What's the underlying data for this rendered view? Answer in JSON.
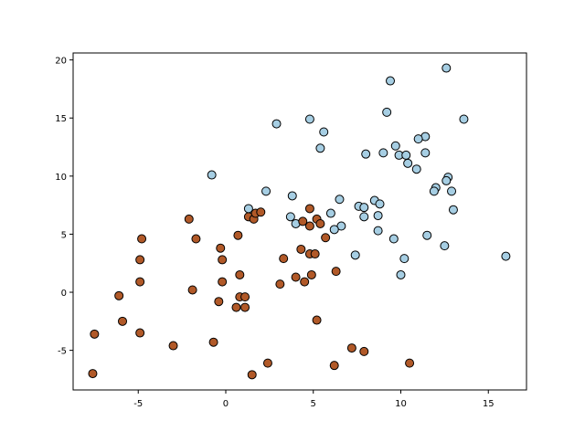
{
  "chart_data": {
    "type": "scatter",
    "xlim": [
      -8.72,
      17.18
    ],
    "ylim": [
      -8.41,
      20.6
    ],
    "xticks": [
      -5,
      0,
      5,
      10,
      15
    ],
    "yticks": [
      -5,
      0,
      5,
      10,
      15,
      20
    ],
    "series": [
      {
        "color": "#a6cee3",
        "x": [
          12.6,
          9.4,
          9.2,
          13.6,
          2.9,
          4.8,
          5.6,
          5.4,
          11.4,
          11.0,
          9.7,
          9.0,
          11.4,
          8.0,
          9.9,
          10.3,
          10.4,
          10.9,
          12.7,
          12.6,
          12.0,
          11.9,
          12.9,
          -0.8,
          2.3,
          3.8,
          6.5,
          8.5,
          8.8,
          1.3,
          7.6,
          7.9,
          6.0,
          8.7,
          7.9,
          13.0,
          3.7,
          4.0,
          6.6,
          6.2,
          8.7,
          9.6,
          11.5,
          12.5,
          7.4,
          10.2,
          16.0,
          10.0
        ],
        "values": [
          19.3,
          18.2,
          15.5,
          14.9,
          14.5,
          14.9,
          13.8,
          12.4,
          13.4,
          13.2,
          12.6,
          12.0,
          12.0,
          11.9,
          11.8,
          11.8,
          11.1,
          10.6,
          9.9,
          9.6,
          9.0,
          8.7,
          8.7,
          10.1,
          8.7,
          8.3,
          8.0,
          7.9,
          7.6,
          7.2,
          7.4,
          7.3,
          6.8,
          6.6,
          6.5,
          7.1,
          6.5,
          5.9,
          5.7,
          5.4,
          5.3,
          4.6,
          4.9,
          4.0,
          3.2,
          2.9,
          3.1,
          1.5
        ]
      },
      {
        "color": "#b15928",
        "x": [
          -2.1,
          -1.7,
          -4.8,
          -4.9,
          -4.9,
          -6.1,
          -5.9,
          -4.9,
          -7.5,
          -7.6,
          -3.0,
          -1.9,
          -0.7,
          -0.3,
          -0.2,
          -0.2,
          -0.4,
          0.7,
          0.8,
          0.8,
          1.1,
          0.6,
          1.1,
          1.3,
          1.6,
          1.7,
          2.0,
          1.5,
          2.4,
          3.1,
          3.3,
          4.0,
          4.3,
          4.4,
          4.5,
          4.8,
          5.1,
          4.8,
          4.8,
          5.2,
          5.4,
          4.9,
          5.2,
          5.7,
          6.3,
          6.2,
          7.2,
          7.9,
          10.5
        ],
        "values": [
          6.3,
          4.6,
          4.6,
          2.8,
          0.9,
          -0.3,
          -2.5,
          -3.5,
          -3.6,
          -7.0,
          -4.6,
          0.2,
          -4.3,
          3.8,
          2.8,
          0.9,
          -0.8,
          4.9,
          1.5,
          -0.4,
          -0.4,
          -1.3,
          -1.3,
          6.5,
          6.3,
          6.8,
          6.9,
          -7.1,
          -6.1,
          0.7,
          2.9,
          1.3,
          3.7,
          6.1,
          0.9,
          3.3,
          3.3,
          7.2,
          5.7,
          6.3,
          5.9,
          1.5,
          -2.4,
          4.7,
          1.8,
          -6.3,
          -4.8,
          -5.1,
          -6.1
        ]
      }
    ]
  }
}
